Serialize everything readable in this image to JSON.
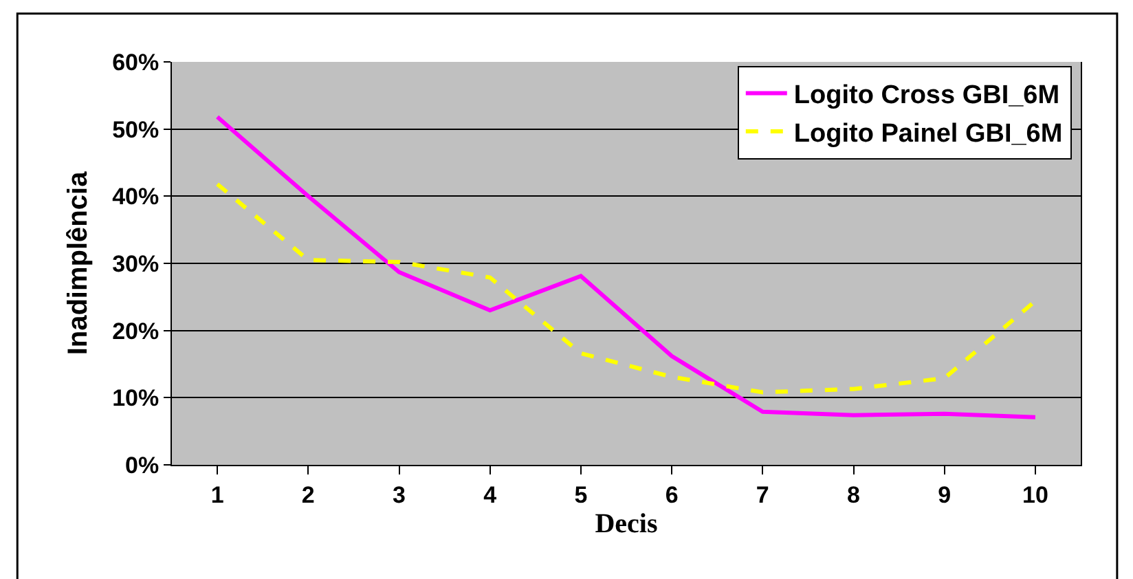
{
  "chart_data": {
    "type": "line",
    "xlabel": "Decis",
    "ylabel": "Inadimplência",
    "categories": [
      "1",
      "2",
      "3",
      "4",
      "5",
      "6",
      "7",
      "8",
      "9",
      "10"
    ],
    "series": [
      {
        "name": "Logito Cross GBI_6M",
        "color": "#ff00ff",
        "line_style": "solid",
        "values": [
          51.8,
          40,
          28.7,
          23,
          28.1,
          16.2,
          7.9,
          7.4,
          7.6,
          7.1
        ]
      },
      {
        "name": "Logito Painel GBI_6M",
        "color": "#ffff00",
        "line_style": "dashed",
        "values": [
          41.8,
          30.5,
          30.2,
          27.9,
          16.6,
          13.1,
          10.8,
          11.3,
          12.9,
          24.4
        ]
      }
    ],
    "ylim": [
      0,
      60
    ],
    "yticks": [
      {
        "value": 0,
        "label": "0%"
      },
      {
        "value": 10,
        "label": "10%"
      },
      {
        "value": 20,
        "label": "20%"
      },
      {
        "value": 30,
        "label": "30%"
      },
      {
        "value": 40,
        "label": "40%"
      },
      {
        "value": 50,
        "label": "50%"
      },
      {
        "value": 60,
        "label": "60%"
      }
    ],
    "grid": "y",
    "legend": "top right",
    "marker": "none"
  }
}
